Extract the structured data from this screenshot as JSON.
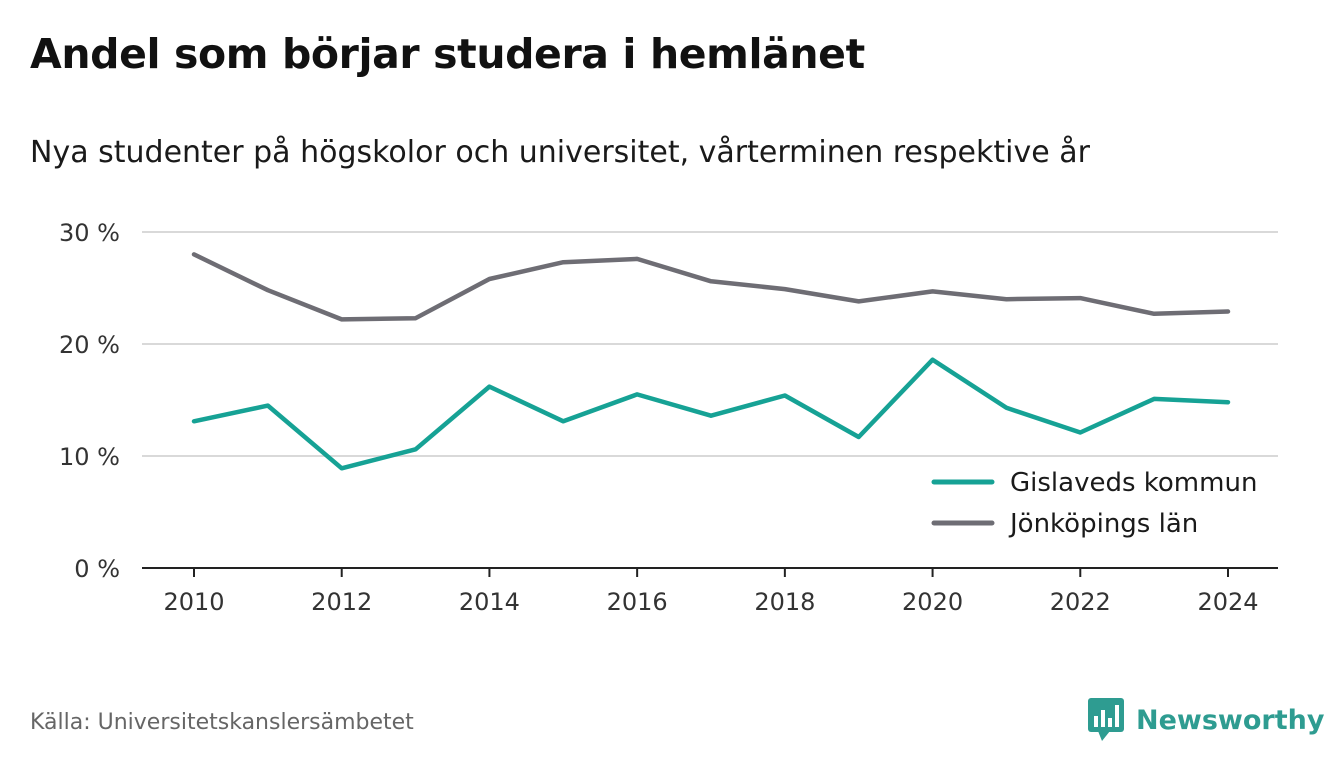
{
  "header": {
    "title": "Andel som börjar studera i hemlänet",
    "subtitle": "Nya studenter på högskolor och universitet, vårterminen respektive år"
  },
  "footer": {
    "source": "Källa: Universitetskanslersämbetet",
    "brand": "Newsworthy",
    "brand_icon": "newsworthy-logo-icon",
    "brand_color": "#2e9c91"
  },
  "chart_data": {
    "type": "line",
    "x": [
      2010,
      2011,
      2012,
      2013,
      2014,
      2015,
      2016,
      2017,
      2018,
      2019,
      2020,
      2021,
      2022,
      2023,
      2024
    ],
    "x_ticks": [
      2010,
      2012,
      2014,
      2016,
      2018,
      2020,
      2022,
      2024
    ],
    "y_ticks": [
      0,
      10,
      20,
      30
    ],
    "y_tick_labels": [
      "0 %",
      "10 %",
      "20 %",
      "30 %"
    ],
    "ylim": [
      0,
      30
    ],
    "grid": "horizontal",
    "legend_position": "bottom-right",
    "series": [
      {
        "name": "Gislaveds kommun",
        "color": "#16a295",
        "values": [
          13.1,
          14.5,
          8.9,
          10.6,
          16.2,
          13.1,
          15.5,
          13.6,
          15.4,
          11.7,
          18.6,
          14.3,
          12.1,
          15.1,
          14.8
        ]
      },
      {
        "name": "Jönköpings län",
        "color": "#6e6d74",
        "values": [
          28.0,
          24.8,
          22.2,
          22.3,
          25.8,
          27.3,
          27.6,
          25.6,
          24.9,
          23.8,
          24.7,
          24.0,
          24.1,
          22.7,
          22.9
        ]
      }
    ]
  }
}
